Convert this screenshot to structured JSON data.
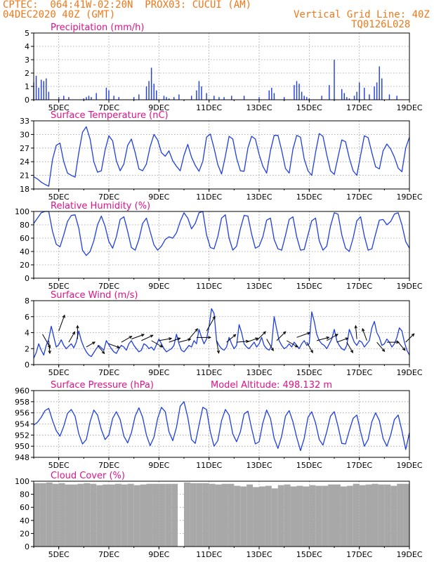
{
  "header": {
    "line1": "CPTEC:  064:41W-02:20N  PROX03: CUCUI (AM)",
    "line2": "04DEC2020 40Z (GMT)",
    "grid_note": "Vertical Grid Line: 40Z",
    "run_code": "TQ0126L028"
  },
  "colors": {
    "header": "#f07818",
    "title": "#e0128a",
    "series": "#1f3fe0",
    "wind_arrow": "#000000",
    "cloud_bar": "#a8a8a8",
    "grid": "#9a9a9a"
  },
  "x_axis": {
    "ticks": [
      "5DEC",
      "7DEC",
      "9DEC",
      "11DEC",
      "13DEC",
      "15DEC",
      "17DEC",
      "19DEC"
    ],
    "range_days": [
      4.0,
      19.0
    ]
  },
  "chart_data": [
    {
      "type": "bar",
      "id": "precip",
      "title": "Precipitation (mm/h)",
      "ylim": [
        0,
        5
      ],
      "yticks": [
        0,
        1,
        2,
        3,
        4,
        5
      ],
      "grid": true,
      "x": [
        4.0,
        4.1,
        4.2,
        4.3,
        4.4,
        4.5,
        4.6,
        5.0,
        5.2,
        5.4,
        6.0,
        6.1,
        6.2,
        6.3,
        6.5,
        6.9,
        7.0,
        7.2,
        7.4,
        8.0,
        8.2,
        8.5,
        8.6,
        8.7,
        8.8,
        8.9,
        9.2,
        9.3,
        9.4,
        9.6,
        9.8,
        10.3,
        10.5,
        10.6,
        10.7,
        10.9,
        11.2,
        11.4,
        11.6,
        11.9,
        12.4,
        13.0,
        13.4,
        13.5,
        13.6,
        14.0,
        14.4,
        14.5,
        14.6,
        14.7,
        14.8,
        14.9,
        15.0,
        15.5,
        15.8,
        16.0,
        16.3,
        16.4,
        16.5,
        16.6,
        16.8,
        16.9,
        17.0,
        17.2,
        17.4,
        17.6,
        17.7,
        17.8,
        17.9,
        18.2,
        18.5
      ],
      "values": [
        1.3,
        1.8,
        0.9,
        1.5,
        1.4,
        1.6,
        0.6,
        0.2,
        0.3,
        0.2,
        0.1,
        0.2,
        0.3,
        0.2,
        0.5,
        0.9,
        0.7,
        0.3,
        0.2,
        0.2,
        0.4,
        1.0,
        1.4,
        2.4,
        1.2,
        0.7,
        0.3,
        0.2,
        0.1,
        0.2,
        0.4,
        0.3,
        0.7,
        1.4,
        1.0,
        0.5,
        0.3,
        0.2,
        0.2,
        0.3,
        0.3,
        0.2,
        0.7,
        0.9,
        0.5,
        0.2,
        1.1,
        1.4,
        1.2,
        0.6,
        0.3,
        0.2,
        0.1,
        0.3,
        1.1,
        3.0,
        0.8,
        0.5,
        0.2,
        0.1,
        0.3,
        0.6,
        1.3,
        0.9,
        0.4,
        1.0,
        1.3,
        2.5,
        1.6,
        0.4,
        0.3
      ],
      "bar_width_days": 0.04
    },
    {
      "type": "line",
      "id": "temp",
      "title": "Surface Temperature (nC)",
      "ylim": [
        18,
        33
      ],
      "yticks": [
        18,
        21,
        24,
        27,
        30,
        33
      ],
      "grid": true,
      "x": [
        4.0,
        4.15,
        4.3,
        4.45,
        4.6,
        4.75,
        4.9,
        5.05,
        5.2,
        5.35,
        5.5,
        5.65,
        5.8,
        5.95,
        6.1,
        6.25,
        6.4,
        6.55,
        6.7,
        6.85,
        7.0,
        7.15,
        7.3,
        7.45,
        7.6,
        7.75,
        7.9,
        8.05,
        8.2,
        8.35,
        8.5,
        8.65,
        8.8,
        8.95,
        9.1,
        9.25,
        9.4,
        9.55,
        9.7,
        9.85,
        10.0,
        10.15,
        10.3,
        10.45,
        10.6,
        10.75,
        10.9,
        11.05,
        11.2,
        11.35,
        11.5,
        11.65,
        11.8,
        11.95,
        12.1,
        12.25,
        12.4,
        12.55,
        12.7,
        12.85,
        13.0,
        13.15,
        13.3,
        13.45,
        13.6,
        13.75,
        13.9,
        14.05,
        14.2,
        14.35,
        14.5,
        14.65,
        14.8,
        14.95,
        15.1,
        15.25,
        15.4,
        15.55,
        15.7,
        15.85,
        16.0,
        16.15,
        16.3,
        16.45,
        16.6,
        16.75,
        16.9,
        17.05,
        17.2,
        17.35,
        17.5,
        17.65,
        17.8,
        17.95,
        18.1,
        18.25,
        18.4,
        18.55,
        18.7,
        18.85,
        19.0
      ],
      "values": [
        20.7,
        20.2,
        19.5,
        19.0,
        18.6,
        24.5,
        27.6,
        28.1,
        24.0,
        21.5,
        21.0,
        20.6,
        26.0,
        30.5,
        31.7,
        29.0,
        24.0,
        21.7,
        22.0,
        26.5,
        29.7,
        28.6,
        24.2,
        22.0,
        23.5,
        27.6,
        29.0,
        26.0,
        22.4,
        22.0,
        23.5,
        27.3,
        30.0,
        28.8,
        26.0,
        25.2,
        26.4,
        24.2,
        23.0,
        22.0,
        25.4,
        27.8,
        25.0,
        23.2,
        21.9,
        24.1,
        29.4,
        30.1,
        27.0,
        23.4,
        21.3,
        25.2,
        29.6,
        29.0,
        24.8,
        22.0,
        21.9,
        27.0,
        29.6,
        29.0,
        25.6,
        23.0,
        21.5,
        26.4,
        29.8,
        29.8,
        26.5,
        22.5,
        21.5,
        26.7,
        29.8,
        29.4,
        24.6,
        22.0,
        21.0,
        26.0,
        30.2,
        29.6,
        25.5,
        22.0,
        21.2,
        25.0,
        28.8,
        28.4,
        24.8,
        22.0,
        21.0,
        25.4,
        29.7,
        29.3,
        26.0,
        22.9,
        22.4,
        26.4,
        27.9,
        26.8,
        25.0,
        22.6,
        21.8,
        27.0,
        29.4
      ]
    },
    {
      "type": "line",
      "id": "rh",
      "title": "Relative Humidity (%)",
      "ylim": [
        0,
        100
      ],
      "yticks": [
        0,
        20,
        40,
        60,
        80,
        100
      ],
      "grid": true,
      "x": [
        4.0,
        4.15,
        4.3,
        4.45,
        4.6,
        4.75,
        4.9,
        5.05,
        5.2,
        5.35,
        5.5,
        5.65,
        5.8,
        5.95,
        6.1,
        6.25,
        6.4,
        6.55,
        6.7,
        6.85,
        7.0,
        7.15,
        7.3,
        7.45,
        7.6,
        7.75,
        7.9,
        8.05,
        8.2,
        8.35,
        8.5,
        8.65,
        8.8,
        8.95,
        9.1,
        9.25,
        9.4,
        9.55,
        9.7,
        9.85,
        10.0,
        10.15,
        10.3,
        10.45,
        10.6,
        10.75,
        10.9,
        11.05,
        11.2,
        11.35,
        11.5,
        11.65,
        11.8,
        11.95,
        12.1,
        12.25,
        12.4,
        12.55,
        12.7,
        12.85,
        13.0,
        13.15,
        13.3,
        13.45,
        13.6,
        13.75,
        13.9,
        14.05,
        14.2,
        14.35,
        14.5,
        14.65,
        14.8,
        14.95,
        15.1,
        15.25,
        15.4,
        15.55,
        15.7,
        15.85,
        16.0,
        16.15,
        16.3,
        16.45,
        16.6,
        16.75,
        16.9,
        17.05,
        17.2,
        17.35,
        17.5,
        17.65,
        17.8,
        17.95,
        18.1,
        18.25,
        18.4,
        18.55,
        18.7,
        18.85,
        19.0
      ],
      "values": [
        82,
        90,
        98,
        100,
        100,
        70,
        51,
        47,
        65,
        85,
        94,
        95,
        75,
        42,
        34,
        40,
        56,
        80,
        93,
        78,
        55,
        45,
        62,
        88,
        92,
        70,
        46,
        42,
        58,
        82,
        90,
        70,
        50,
        42,
        48,
        58,
        62,
        60,
        68,
        85,
        98,
        90,
        74,
        82,
        98,
        100,
        65,
        46,
        44,
        62,
        90,
        95,
        60,
        42,
        48,
        74,
        94,
        93,
        66,
        45,
        48,
        62,
        87,
        90,
        58,
        44,
        42,
        64,
        88,
        92,
        62,
        42,
        43,
        65,
        86,
        90,
        56,
        42,
        48,
        78,
        98,
        96,
        65,
        45,
        40,
        60,
        86,
        92,
        63,
        42,
        44,
        66,
        87,
        88,
        80,
        85,
        96,
        98,
        80,
        55,
        45
      ]
    },
    {
      "type": "line",
      "id": "wind",
      "title": "Surface Wind (m/s)",
      "ylim": [
        0,
        8
      ],
      "yticks": [
        0,
        2,
        4,
        6,
        8
      ],
      "grid": true,
      "x": [
        4.0,
        4.1,
        4.2,
        4.3,
        4.4,
        4.5,
        4.6,
        4.7,
        4.8,
        4.9,
        5.0,
        5.1,
        5.2,
        5.3,
        5.4,
        5.5,
        5.6,
        5.7,
        5.8,
        5.9,
        6.0,
        6.1,
        6.2,
        6.3,
        6.4,
        6.5,
        6.6,
        6.7,
        6.8,
        6.9,
        7.0,
        7.1,
        7.2,
        7.3,
        7.4,
        7.5,
        7.6,
        7.7,
        7.8,
        7.9,
        8.0,
        8.1,
        8.2,
        8.3,
        8.4,
        8.5,
        8.6,
        8.7,
        8.8,
        8.9,
        9.0,
        9.1,
        9.2,
        9.3,
        9.4,
        9.5,
        9.6,
        9.7,
        9.8,
        9.9,
        10.0,
        10.1,
        10.2,
        10.3,
        10.4,
        10.5,
        10.6,
        10.7,
        10.8,
        10.9,
        11.0,
        11.1,
        11.2,
        11.3,
        11.4,
        11.5,
        11.6,
        11.7,
        11.8,
        11.9,
        12.0,
        12.1,
        12.2,
        12.3,
        12.4,
        12.5,
        12.6,
        12.7,
        12.8,
        12.9,
        13.0,
        13.1,
        13.2,
        13.3,
        13.4,
        13.5,
        13.6,
        13.7,
        13.8,
        13.9,
        14.0,
        14.1,
        14.2,
        14.3,
        14.4,
        14.5,
        14.6,
        14.7,
        14.8,
        14.9,
        15.0,
        15.1,
        15.2,
        15.3,
        15.4,
        15.5,
        15.6,
        15.7,
        15.8,
        15.9,
        16.0,
        16.1,
        16.2,
        16.3,
        16.4,
        16.5,
        16.6,
        16.7,
        16.8,
        16.9,
        17.0,
        17.1,
        17.2,
        17.3,
        17.4,
        17.5,
        17.6,
        17.7,
        17.8,
        17.9,
        18.0,
        18.1,
        18.2,
        18.3,
        18.4,
        18.5,
        18.6,
        18.7,
        18.8,
        18.9,
        19.0
      ],
      "values": [
        0.8,
        1.5,
        2.6,
        1.8,
        1.2,
        2.4,
        3.2,
        4.8,
        3.5,
        2.2,
        2.5,
        3.1,
        2.4,
        2.0,
        2.3,
        2.6,
        2.1,
        2.8,
        4.2,
        3.0,
        2.2,
        1.6,
        1.2,
        1.0,
        1.5,
        2.0,
        2.4,
        2.1,
        1.8,
        3.0,
        2.5,
        2.0,
        1.6,
        1.4,
        2.0,
        2.4,
        2.2,
        1.8,
        2.6,
        3.0,
        2.4,
        2.0,
        1.6,
        1.8,
        2.6,
        2.4,
        2.0,
        2.2,
        1.8,
        2.5,
        3.2,
        2.6,
        2.0,
        1.6,
        1.8,
        2.0,
        2.4,
        3.8,
        2.6,
        1.8,
        1.6,
        2.0,
        2.4,
        2.2,
        3.0,
        2.6,
        4.4,
        3.4,
        2.6,
        3.2,
        4.8,
        7.0,
        6.4,
        3.0,
        2.4,
        2.0,
        1.8,
        2.2,
        3.4,
        2.6,
        2.0,
        2.4,
        5.0,
        4.0,
        2.6,
        2.2,
        2.0,
        2.4,
        2.8,
        2.2,
        2.6,
        3.4,
        2.4,
        2.0,
        1.8,
        2.4,
        6.0,
        4.4,
        3.0,
        2.4,
        2.0,
        2.2,
        2.6,
        2.2,
        2.8,
        2.4,
        2.0,
        2.6,
        3.0,
        2.4,
        2.6,
        6.6,
        5.4,
        3.8,
        3.0,
        2.6,
        2.4,
        2.0,
        2.6,
        3.2,
        4.4,
        3.0,
        2.4,
        2.0,
        1.8,
        2.4,
        4.4,
        3.6,
        2.8,
        2.4,
        3.0,
        2.8,
        2.2,
        2.6,
        3.0,
        4.6,
        5.4,
        4.0,
        3.4,
        2.4,
        2.6,
        3.2,
        2.8,
        2.2,
        2.6,
        3.4,
        4.6,
        4.2,
        2.8,
        1.8,
        1.2
      ]
    },
    {
      "type": "line",
      "id": "pressure",
      "title": "Surface Pressure (hPa)",
      "annotation": "Model Altitude: 498.132 m",
      "ylim": [
        948,
        960
      ],
      "yticks": [
        948,
        950,
        952,
        954,
        956,
        958,
        960
      ],
      "grid": true,
      "x": [
        4.0,
        4.15,
        4.3,
        4.45,
        4.6,
        4.75,
        4.9,
        5.05,
        5.2,
        5.35,
        5.5,
        5.65,
        5.8,
        5.95,
        6.1,
        6.25,
        6.4,
        6.55,
        6.7,
        6.85,
        7.0,
        7.15,
        7.3,
        7.45,
        7.6,
        7.75,
        7.9,
        8.05,
        8.2,
        8.35,
        8.5,
        8.65,
        8.8,
        8.95,
        9.1,
        9.25,
        9.4,
        9.55,
        9.7,
        9.85,
        10.0,
        10.15,
        10.3,
        10.45,
        10.6,
        10.75,
        10.9,
        11.05,
        11.2,
        11.35,
        11.5,
        11.65,
        11.8,
        11.95,
        12.1,
        12.25,
        12.4,
        12.55,
        12.7,
        12.85,
        13.0,
        13.15,
        13.3,
        13.45,
        13.6,
        13.75,
        13.9,
        14.05,
        14.2,
        14.35,
        14.5,
        14.65,
        14.8,
        14.95,
        15.1,
        15.25,
        15.4,
        15.55,
        15.7,
        15.85,
        16.0,
        16.15,
        16.3,
        16.45,
        16.6,
        16.75,
        16.9,
        17.05,
        17.2,
        17.35,
        17.5,
        17.65,
        17.8,
        17.95,
        18.1,
        18.25,
        18.4,
        18.55,
        18.7,
        18.85,
        19.0
      ],
      "values": [
        953.8,
        954.3,
        955.2,
        956.4,
        956.8,
        954.6,
        952.8,
        951.8,
        953.6,
        955.9,
        956.6,
        955.4,
        952.2,
        950.4,
        951.2,
        954.4,
        956.5,
        955.6,
        953.0,
        951.2,
        952.0,
        955.0,
        956.2,
        954.8,
        951.8,
        950.6,
        952.4,
        955.4,
        956.9,
        955.2,
        952.0,
        950.1,
        951.6,
        955.0,
        957.0,
        956.2,
        952.6,
        951.0,
        953.4,
        957.2,
        958.0,
        955.2,
        951.2,
        950.5,
        953.8,
        957.0,
        956.6,
        952.6,
        950.0,
        951.0,
        954.6,
        956.6,
        955.6,
        952.2,
        950.8,
        952.6,
        955.8,
        956.3,
        953.2,
        950.4,
        950.8,
        954.2,
        956.5,
        955.0,
        951.4,
        949.6,
        951.8,
        955.4,
        956.4,
        954.4,
        951.6,
        949.2,
        951.4,
        955.2,
        956.2,
        954.2,
        951.2,
        950.2,
        952.6,
        955.4,
        956.2,
        953.6,
        950.5,
        950.4,
        952.8,
        955.0,
        955.6,
        952.6,
        950.0,
        951.2,
        954.4,
        956.0,
        954.6,
        951.4,
        950.0,
        952.0,
        954.8,
        955.6,
        952.8,
        949.4,
        952.4
      ]
    },
    {
      "type": "bar",
      "id": "cloud",
      "title": "Cloud Cover (%)",
      "ylim": [
        0,
        100
      ],
      "yticks": [
        0,
        20,
        40,
        60,
        80,
        100
      ],
      "grid": true,
      "x": [
        4.0,
        4.25,
        4.5,
        4.75,
        5.0,
        5.25,
        5.5,
        5.75,
        6.0,
        6.25,
        6.5,
        6.75,
        7.0,
        7.25,
        7.5,
        7.75,
        8.0,
        8.25,
        8.5,
        8.75,
        9.0,
        9.25,
        9.5,
        9.75,
        10.0,
        10.25,
        10.5,
        10.75,
        11.0,
        11.25,
        11.5,
        11.75,
        12.0,
        12.25,
        12.5,
        12.75,
        13.0,
        13.25,
        13.5,
        13.75,
        14.0,
        14.25,
        14.5,
        14.75,
        15.0,
        15.25,
        15.5,
        15.75,
        16.0,
        16.25,
        16.5,
        16.75,
        17.0,
        17.25,
        17.5,
        17.75,
        18.0,
        18.25,
        18.5,
        18.75
      ],
      "values": [
        97,
        97,
        98,
        96,
        97,
        95,
        95,
        96,
        97,
        96,
        94,
        95,
        95,
        96,
        95,
        96,
        94,
        95,
        96,
        96,
        96,
        96,
        96,
        0,
        98,
        97,
        97,
        97,
        96,
        95,
        96,
        96,
        93,
        92,
        95,
        91,
        92,
        93,
        89,
        94,
        95,
        92,
        93,
        92,
        94,
        93,
        93,
        95,
        95,
        92,
        93,
        96,
        94,
        95,
        96,
        95,
        95,
        93,
        96,
        96
      ],
      "bar_width_days": 0.25
    }
  ],
  "wind_vectors": {
    "note": "direction_deg = meteorological direction the wind blows FROM",
    "x": [
      4.35,
      4.6,
      5.0,
      5.4,
      5.75,
      6.1,
      6.55,
      7.0,
      7.5,
      7.9,
      8.3,
      8.7,
      9.0,
      9.4,
      9.8,
      10.2,
      10.5,
      10.9,
      11.3,
      11.7,
      12.1,
      12.5,
      12.9,
      13.3,
      13.7,
      14.1,
      14.5,
      14.9,
      15.3,
      15.7,
      16.1,
      16.5,
      16.9,
      17.3,
      17.7,
      18.1,
      18.5,
      18.85
    ],
    "speed": [
      3.2,
      2.4,
      3.6,
      2.2,
      2.6,
      1.6,
      1.8,
      2.0,
      2.2,
      2.6,
      2.4,
      2.4,
      2.4,
      2.2,
      2.2,
      2.6,
      2.8,
      3.6,
      2.4,
      2.2,
      2.2,
      2.2,
      2.4,
      2.6,
      2.4,
      2.4,
      2.8,
      2.2,
      2.4,
      2.4,
      2.2,
      2.2,
      2.6,
      2.4,
      2.2,
      2.2,
      2.4,
      2.2
    ],
    "direction_deg": [
      330,
      355,
      200,
      210,
      180,
      240,
      320,
      290,
      240,
      250,
      245,
      300,
      260,
      250,
      255,
      220,
      270,
      210,
      350,
      230,
      265,
      250,
      225,
      330,
      225,
      300,
      250,
      330,
      255,
      240,
      250,
      330,
      175,
      160,
      320,
      270,
      320,
      225
    ]
  }
}
